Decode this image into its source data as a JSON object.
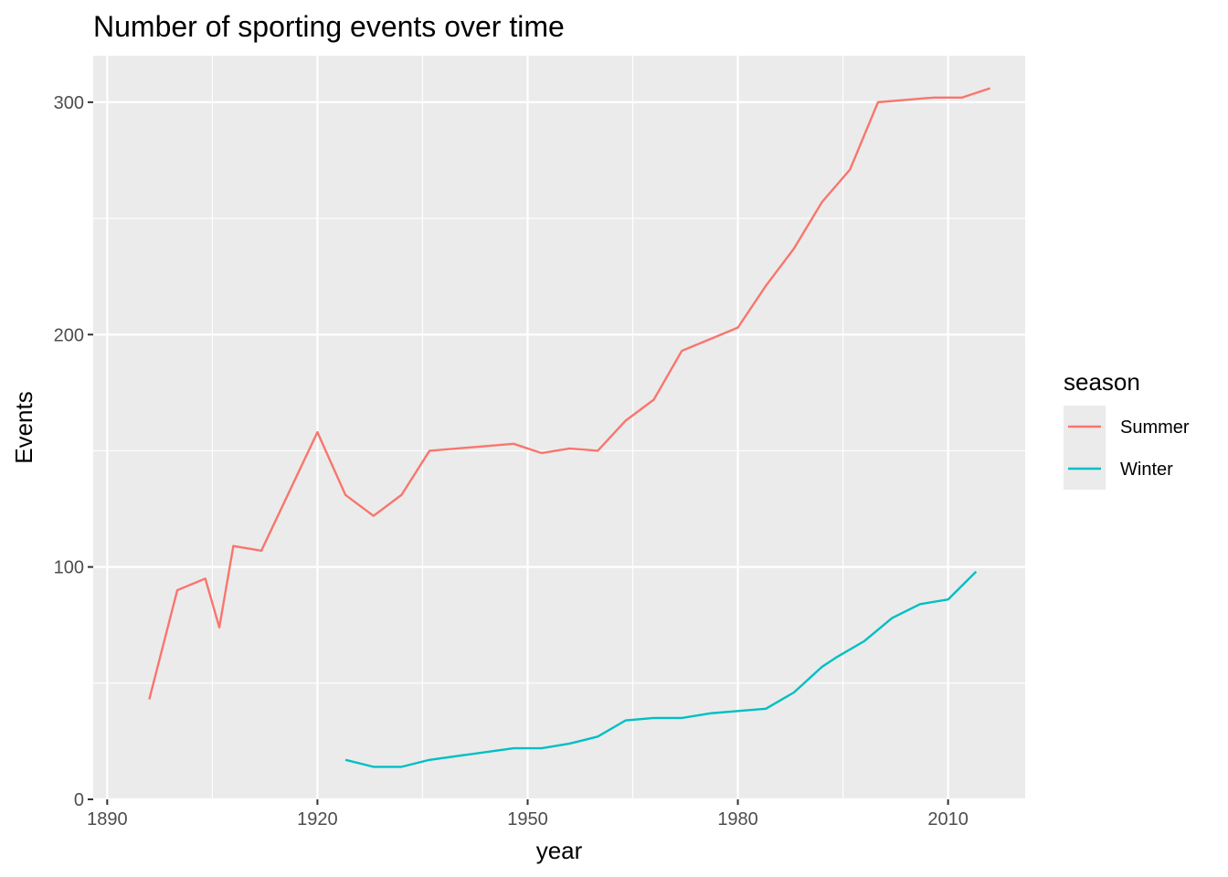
{
  "chart_data": {
    "type": "line",
    "title": "Number of sporting events over time",
    "xlabel": "year",
    "ylabel": "Events",
    "xlim": [
      1888,
      2021
    ],
    "ylim": [
      0,
      320
    ],
    "x_ticks": [
      1890,
      1920,
      1950,
      1980,
      2010
    ],
    "y_ticks": [
      0,
      100,
      200,
      300
    ],
    "grid": true,
    "legend_title": "season",
    "legend_position": "right",
    "series": [
      {
        "name": "Summer",
        "color": "#F8766D",
        "x": [
          1896,
          1900,
          1904,
          1906,
          1908,
          1912,
          1920,
          1924,
          1928,
          1932,
          1936,
          1948,
          1952,
          1956,
          1960,
          1964,
          1968,
          1972,
          1976,
          1980,
          1984,
          1988,
          1992,
          1996,
          2000,
          2004,
          2008,
          2012,
          2016
        ],
        "y": [
          43,
          90,
          95,
          74,
          109,
          107,
          158,
          131,
          122,
          131,
          150,
          153,
          149,
          151,
          150,
          163,
          172,
          193,
          198,
          203,
          221,
          237,
          257,
          271,
          300,
          301,
          302,
          302,
          306
        ]
      },
      {
        "name": "Winter",
        "color": "#00BFC4",
        "x": [
          1924,
          1928,
          1932,
          1936,
          1948,
          1952,
          1956,
          1960,
          1964,
          1968,
          1972,
          1976,
          1980,
          1984,
          1988,
          1992,
          1994,
          1998,
          2002,
          2006,
          2010,
          2014
        ],
        "y": [
          17,
          14,
          14,
          17,
          22,
          22,
          24,
          27,
          34,
          35,
          35,
          37,
          38,
          39,
          46,
          57,
          61,
          68,
          78,
          84,
          86,
          98
        ]
      }
    ]
  }
}
